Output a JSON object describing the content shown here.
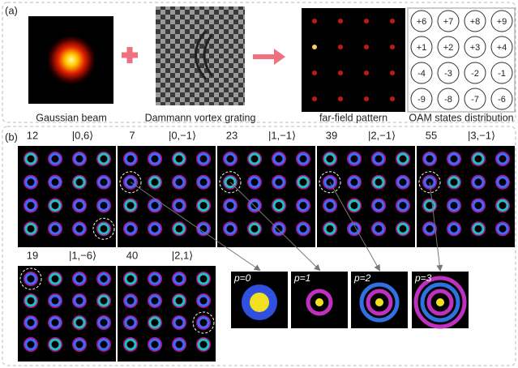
{
  "panel_a": {
    "label": "(a)",
    "captions": [
      "Gaussian beam",
      "Dammann vortex grating",
      "far-field pattern",
      "OAM states distribution"
    ],
    "oam_grid": [
      [
        "+6",
        "+7",
        "+8",
        "+9"
      ],
      [
        "+1",
        "+2",
        "+3",
        "+4"
      ],
      [
        "-4",
        "-3",
        "-2",
        "-1"
      ],
      [
        "-9",
        "-8",
        "-7",
        "-6"
      ]
    ]
  },
  "panel_b": {
    "label": "(b)",
    "frames": [
      {
        "number": 12,
        "state": "|0,6⟩"
      },
      {
        "number": 7,
        "state": "|0,−1⟩"
      },
      {
        "number": 23,
        "state": "|1,−1⟩"
      },
      {
        "number": 39,
        "state": "|2,−1⟩"
      },
      {
        "number": 55,
        "state": "|3,−1⟩"
      },
      {
        "number": 19,
        "state": "|1,−6⟩"
      },
      {
        "number": 40,
        "state": "|2,1⟩"
      }
    ],
    "zoom": [
      "p=0",
      "p=1",
      "p=2",
      "p=3"
    ]
  }
}
